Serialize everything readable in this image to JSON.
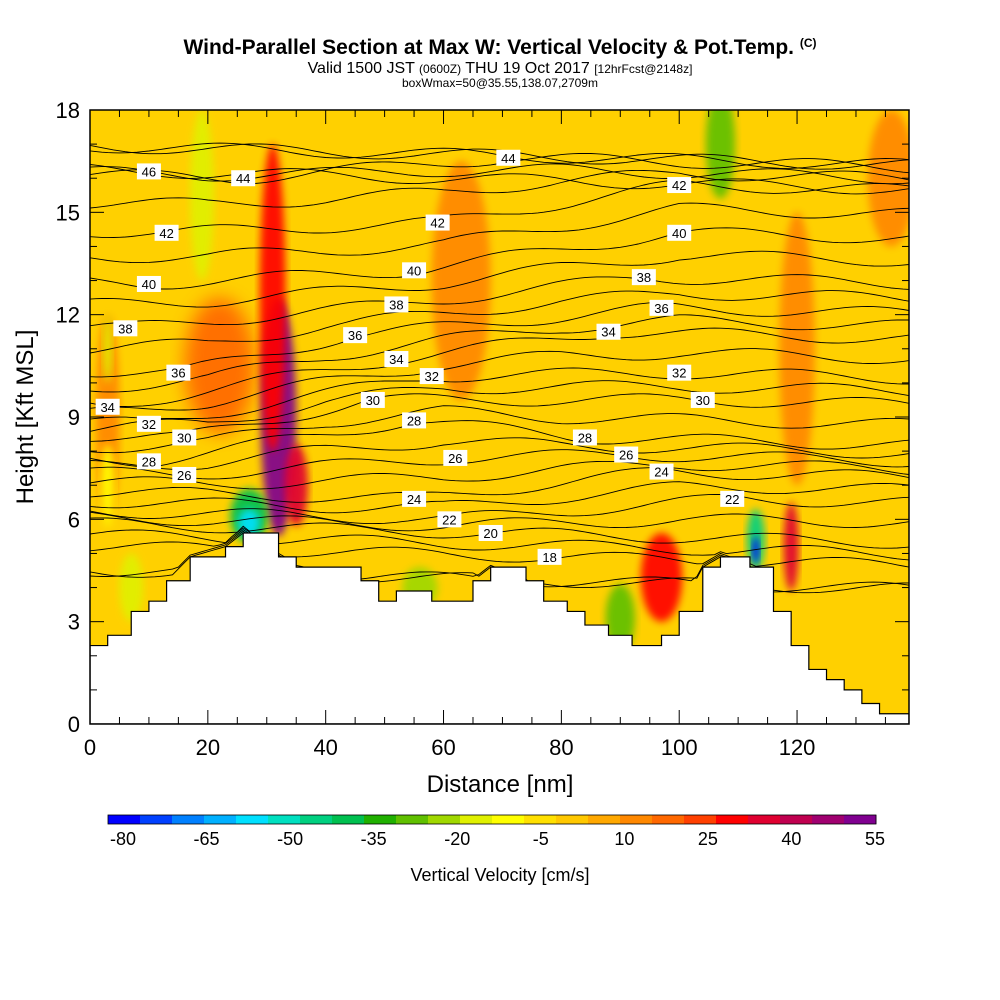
{
  "chart_data": {
    "type": "heatmap",
    "title": "Wind-Parallel Section at Max W: Vertical Velocity & Pot.Temp.",
    "title_mark": "(C)",
    "subtitle": "Valid 1500 JST",
    "subtitle_zulu": "(0600Z)",
    "subtitle_date": "THU 19 Oct 2017",
    "subtitle_fcst": "[12hrFcst@2148z]",
    "subtitle2": "boxWmax=50@35.55,138.07,2709m",
    "xlabel": "Distance [nm]",
    "ylabel": "Height [Kft MSL]",
    "xlim": [
      0,
      139
    ],
    "ylim": [
      0,
      18
    ],
    "x_ticks": [
      "0",
      "20",
      "40",
      "60",
      "80",
      "100",
      "120"
    ],
    "y_ticks": [
      "0",
      "3",
      "6",
      "9",
      "12",
      "15",
      "18"
    ],
    "colorbar": {
      "title": "Vertical Velocity [cm/s]",
      "labels": [
        "-80",
        "-65",
        "-50",
        "-35",
        "-20",
        "-5",
        "10",
        "25",
        "40",
        "55"
      ],
      "colors": [
        "#0000ff",
        "#0040ff",
        "#0080ff",
        "#00b0ff",
        "#00e0ff",
        "#00e0c0",
        "#00d080",
        "#00c050",
        "#20b000",
        "#60c000",
        "#a0d800",
        "#e0f000",
        "#ffff00",
        "#ffe000",
        "#ffc800",
        "#ffa800",
        "#ff8800",
        "#ff6800",
        "#ff4000",
        "#ff0000",
        "#e00030",
        "#c00050",
        "#a00070",
        "#800090"
      ]
    },
    "theta_labels": [
      {
        "text": "46",
        "x": 10,
        "y": 16.2
      },
      {
        "text": "44",
        "x": 26,
        "y": 16.0
      },
      {
        "text": "44",
        "x": 71,
        "y": 16.6
      },
      {
        "text": "42",
        "x": 13,
        "y": 14.4
      },
      {
        "text": "42",
        "x": 59,
        "y": 14.7
      },
      {
        "text": "42",
        "x": 100,
        "y": 15.8
      },
      {
        "text": "40",
        "x": 10,
        "y": 12.9
      },
      {
        "text": "40",
        "x": 55,
        "y": 13.3
      },
      {
        "text": "40",
        "x": 100,
        "y": 14.4
      },
      {
        "text": "38",
        "x": 6,
        "y": 11.6
      },
      {
        "text": "38",
        "x": 52,
        "y": 12.3
      },
      {
        "text": "38",
        "x": 94,
        "y": 13.1
      },
      {
        "text": "36",
        "x": 15,
        "y": 10.3
      },
      {
        "text": "36",
        "x": 45,
        "y": 11.4
      },
      {
        "text": "36",
        "x": 97,
        "y": 12.2
      },
      {
        "text": "34",
        "x": 3,
        "y": 9.3
      },
      {
        "text": "34",
        "x": 52,
        "y": 10.7
      },
      {
        "text": "34",
        "x": 88,
        "y": 11.5
      },
      {
        "text": "32",
        "x": 10,
        "y": 8.8
      },
      {
        "text": "32",
        "x": 58,
        "y": 10.2
      },
      {
        "text": "32",
        "x": 100,
        "y": 10.3
      },
      {
        "text": "30",
        "x": 16,
        "y": 8.4
      },
      {
        "text": "30",
        "x": 48,
        "y": 9.5
      },
      {
        "text": "30",
        "x": 104,
        "y": 9.5
      },
      {
        "text": "28",
        "x": 10,
        "y": 7.7
      },
      {
        "text": "28",
        "x": 55,
        "y": 8.9
      },
      {
        "text": "28",
        "x": 84,
        "y": 8.4
      },
      {
        "text": "26",
        "x": 16,
        "y": 7.3
      },
      {
        "text": "26",
        "x": 62,
        "y": 7.8
      },
      {
        "text": "26",
        "x": 91,
        "y": 7.9
      },
      {
        "text": "24",
        "x": 55,
        "y": 6.6
      },
      {
        "text": "24",
        "x": 97,
        "y": 7.4
      },
      {
        "text": "22",
        "x": 61,
        "y": 6.0
      },
      {
        "text": "22",
        "x": 109,
        "y": 6.6
      },
      {
        "text": "20",
        "x": 68,
        "y": 5.6
      },
      {
        "text": "18",
        "x": 78,
        "y": 4.9
      }
    ],
    "terrain": [
      [
        0,
        2.3
      ],
      [
        3,
        2.6
      ],
      [
        7,
        3.3
      ],
      [
        10,
        3.6
      ],
      [
        13,
        4.2
      ],
      [
        17,
        4.9
      ],
      [
        23,
        5.2
      ],
      [
        26,
        5.6
      ],
      [
        32,
        4.9
      ],
      [
        35,
        4.6
      ],
      [
        46,
        4.2
      ],
      [
        49,
        3.6
      ],
      [
        52,
        3.9
      ],
      [
        58,
        3.6
      ],
      [
        65,
        4.2
      ],
      [
        68,
        4.6
      ],
      [
        74,
        4.2
      ],
      [
        77,
        3.6
      ],
      [
        81,
        3.3
      ],
      [
        84,
        2.9
      ],
      [
        88,
        2.6
      ],
      [
        92,
        2.3
      ],
      [
        97,
        2.6
      ],
      [
        100,
        3.3
      ],
      [
        104,
        4.6
      ],
      [
        107,
        4.9
      ],
      [
        112,
        4.6
      ],
      [
        116,
        3.3
      ],
      [
        119,
        2.3
      ],
      [
        122,
        1.6
      ],
      [
        125,
        1.3
      ],
      [
        128,
        1.0
      ],
      [
        131,
        0.6
      ],
      [
        134,
        0.3
      ],
      [
        139,
        0.3
      ]
    ],
    "w_features": [
      {
        "x": 32,
        "y": 9.0,
        "rx": 3,
        "ry": 3.5,
        "w": 50
      },
      {
        "x": 31,
        "y": 12.5,
        "rx": 2.2,
        "ry": 4.5,
        "w": 30
      },
      {
        "x": 35,
        "y": 7.0,
        "rx": 2,
        "ry": 1.2,
        "w": 35
      },
      {
        "x": 22,
        "y": 10.5,
        "rx": 6,
        "ry": 2,
        "w": 18
      },
      {
        "x": 63,
        "y": 13.0,
        "rx": 5,
        "ry": 3.5,
        "w": 14
      },
      {
        "x": 97,
        "y": 4.3,
        "rx": 3.5,
        "ry": 1.3,
        "w": 30
      },
      {
        "x": 119,
        "y": 5.2,
        "rx": 1.3,
        "ry": 1.3,
        "w": 35
      },
      {
        "x": 120,
        "y": 11.0,
        "rx": 3,
        "ry": 4,
        "w": 15
      },
      {
        "x": 136,
        "y": 16.0,
        "rx": 4,
        "ry": 2,
        "w": 12
      },
      {
        "x": 3,
        "y": 9.0,
        "rx": 2,
        "ry": 3,
        "w": 10
      },
      {
        "x": 19,
        "y": 15.5,
        "rx": 2,
        "ry": 2.5,
        "w": -18
      },
      {
        "x": 107,
        "y": 17.0,
        "rx": 2.5,
        "ry": 1.6,
        "w": -25
      },
      {
        "x": 27,
        "y": 6.1,
        "rx": 3.2,
        "ry": 0.8,
        "w": -40
      },
      {
        "x": 27,
        "y": 5.9,
        "rx": 1.8,
        "ry": 0.4,
        "w": -55
      },
      {
        "x": 113,
        "y": 5.4,
        "rx": 1.5,
        "ry": 0.9,
        "w": -45
      },
      {
        "x": 113,
        "y": 5.1,
        "rx": 0.6,
        "ry": 0.4,
        "w": -75
      },
      {
        "x": 90,
        "y": 3.1,
        "rx": 2.5,
        "ry": 1.0,
        "w": -25
      },
      {
        "x": 56,
        "y": 4.0,
        "rx": 3,
        "ry": 0.6,
        "w": -20
      },
      {
        "x": 7,
        "y": 4.0,
        "rx": 2,
        "ry": 1.0,
        "w": -15
      },
      {
        "x": 3,
        "y": 11.0,
        "rx": 0.8,
        "ry": 1.0,
        "w": -15
      },
      {
        "x": 3,
        "y": 7.0,
        "rx": 1.2,
        "ry": 1.2,
        "w": -12
      }
    ]
  }
}
